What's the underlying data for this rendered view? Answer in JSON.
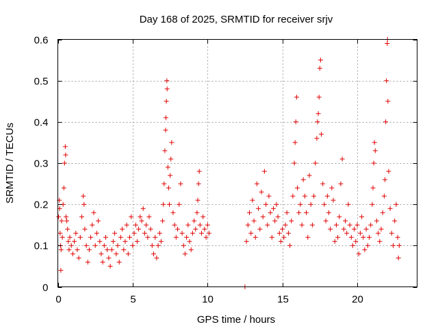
{
  "chart_data": {
    "type": "scatter",
    "title": "Day 168 of 2025, SRMTID for receiver srjv",
    "xlabel": "GPS time / hours",
    "ylabel": "SRMTID / TECUs",
    "xlim": [
      0,
      24
    ],
    "ylim": [
      0,
      0.6
    ],
    "xticks": [
      0,
      5,
      10,
      15,
      20
    ],
    "xtick_labels": [
      "0",
      "5",
      "10",
      "15",
      "20"
    ],
    "yticks": [
      0,
      0.1,
      0.2,
      0.3,
      0.4,
      0.5,
      0.6
    ],
    "ytick_labels": [
      "0",
      "0.1",
      "0.2",
      "0.3",
      "0.4",
      "0.5",
      "0.6"
    ],
    "grid": true,
    "marker": "plus",
    "color": "#e00000",
    "series": [
      {
        "name": "srjv",
        "points": [
          [
            0.05,
            0.17
          ],
          [
            0.1,
            0.21
          ],
          [
            0.12,
            0.19
          ],
          [
            0.15,
            0.13
          ],
          [
            0.18,
            0.1
          ],
          [
            0.2,
            0.04
          ],
          [
            0.22,
            0.09
          ],
          [
            0.25,
            0.16
          ],
          [
            0.3,
            0.12
          ],
          [
            0.35,
            0.2
          ],
          [
            0.4,
            0.24
          ],
          [
            0.45,
            0.3
          ],
          [
            0.5,
            0.34
          ],
          [
            0.52,
            0.32
          ],
          [
            0.55,
            0.17
          ],
          [
            0.6,
            0.16
          ],
          [
            0.65,
            0.14
          ],
          [
            0.7,
            0.11
          ],
          [
            0.75,
            0.09
          ],
          [
            0.8,
            0.12
          ],
          [
            0.9,
            0.1
          ],
          [
            1.0,
            0.08
          ],
          [
            1.1,
            0.11
          ],
          [
            1.2,
            0.13
          ],
          [
            1.3,
            0.09
          ],
          [
            1.4,
            0.07
          ],
          [
            1.5,
            0.12
          ],
          [
            1.6,
            0.17
          ],
          [
            1.7,
            0.22
          ],
          [
            1.75,
            0.2
          ],
          [
            1.8,
            0.14
          ],
          [
            1.9,
            0.1
          ],
          [
            2.0,
            0.06
          ],
          [
            2.1,
            0.09
          ],
          [
            2.2,
            0.12
          ],
          [
            2.3,
            0.15
          ],
          [
            2.4,
            0.18
          ],
          [
            2.5,
            0.1
          ],
          [
            2.6,
            0.13
          ],
          [
            2.7,
            0.16
          ],
          [
            2.8,
            0.11
          ],
          [
            2.9,
            0.08
          ],
          [
            3.0,
            0.06
          ],
          [
            3.1,
            0.1
          ],
          [
            3.2,
            0.12
          ],
          [
            3.3,
            0.09
          ],
          [
            3.4,
            0.07
          ],
          [
            3.5,
            0.05
          ],
          [
            3.6,
            0.09
          ],
          [
            3.7,
            0.11
          ],
          [
            3.8,
            0.13
          ],
          [
            3.9,
            0.08
          ],
          [
            4.0,
            0.1
          ],
          [
            4.1,
            0.06
          ],
          [
            4.2,
            0.12
          ],
          [
            4.3,
            0.14
          ],
          [
            4.4,
            0.09
          ],
          [
            4.5,
            0.11
          ],
          [
            4.6,
            0.15
          ],
          [
            4.7,
            0.08
          ],
          [
            4.8,
            0.12
          ],
          [
            4.9,
            0.17
          ],
          [
            5.0,
            0.1
          ],
          [
            5.1,
            0.13
          ],
          [
            5.2,
            0.15
          ],
          [
            5.3,
            0.11
          ],
          [
            5.4,
            0.14
          ],
          [
            5.5,
            0.17
          ],
          [
            5.6,
            0.16
          ],
          [
            5.7,
            0.19
          ],
          [
            5.8,
            0.13
          ],
          [
            5.9,
            0.15
          ],
          [
            6.0,
            0.12
          ],
          [
            6.1,
            0.17
          ],
          [
            6.2,
            0.14
          ],
          [
            6.3,
            0.1
          ],
          [
            6.4,
            0.08
          ],
          [
            6.5,
            0.12
          ],
          [
            6.6,
            0.07
          ],
          [
            6.7,
            0.1
          ],
          [
            6.8,
            0.13
          ],
          [
            6.9,
            0.11
          ],
          [
            7.0,
            0.16
          ],
          [
            7.05,
            0.2
          ],
          [
            7.1,
            0.25
          ],
          [
            7.15,
            0.33
          ],
          [
            7.2,
            0.38
          ],
          [
            7.22,
            0.41
          ],
          [
            7.25,
            0.45
          ],
          [
            7.28,
            0.5
          ],
          [
            7.3,
            0.48
          ],
          [
            7.35,
            0.29
          ],
          [
            7.4,
            0.24
          ],
          [
            7.45,
            0.2
          ],
          [
            7.5,
            0.27
          ],
          [
            7.55,
            0.31
          ],
          [
            7.6,
            0.35
          ],
          [
            7.7,
            0.18
          ],
          [
            7.8,
            0.15
          ],
          [
            7.9,
            0.12
          ],
          [
            8.0,
            0.14
          ],
          [
            8.1,
            0.2
          ],
          [
            8.2,
            0.25
          ],
          [
            8.3,
            0.13
          ],
          [
            8.4,
            0.1
          ],
          [
            8.5,
            0.08
          ],
          [
            8.6,
            0.12
          ],
          [
            8.7,
            0.15
          ],
          [
            8.8,
            0.11
          ],
          [
            8.9,
            0.09
          ],
          [
            9.0,
            0.13
          ],
          [
            9.1,
            0.16
          ],
          [
            9.2,
            0.14
          ],
          [
            9.3,
            0.18
          ],
          [
            9.35,
            0.21
          ],
          [
            9.4,
            0.25
          ],
          [
            9.45,
            0.28
          ],
          [
            9.5,
            0.15
          ],
          [
            9.6,
            0.13
          ],
          [
            9.7,
            0.17
          ],
          [
            9.8,
            0.14
          ],
          [
            9.9,
            0.12
          ],
          [
            10.0,
            0.15
          ],
          [
            10.1,
            0.13
          ],
          [
            12.5,
            0.0
          ],
          [
            12.6,
            0.11
          ],
          [
            12.7,
            0.15
          ],
          [
            12.8,
            0.18
          ],
          [
            12.9,
            0.13
          ],
          [
            13.0,
            0.21
          ],
          [
            13.1,
            0.16
          ],
          [
            13.2,
            0.12
          ],
          [
            13.3,
            0.25
          ],
          [
            13.4,
            0.19
          ],
          [
            13.5,
            0.14
          ],
          [
            13.6,
            0.23
          ],
          [
            13.7,
            0.17
          ],
          [
            13.8,
            0.28
          ],
          [
            13.9,
            0.2
          ],
          [
            14.0,
            0.15
          ],
          [
            14.1,
            0.22
          ],
          [
            14.2,
            0.18
          ],
          [
            14.3,
            0.12
          ],
          [
            14.4,
            0.19
          ],
          [
            14.5,
            0.16
          ],
          [
            14.6,
            0.2
          ],
          [
            14.7,
            0.17
          ],
          [
            14.8,
            0.13
          ],
          [
            14.9,
            0.11
          ],
          [
            15.0,
            0.14
          ],
          [
            15.1,
            0.12
          ],
          [
            15.2,
            0.15
          ],
          [
            15.3,
            0.18
          ],
          [
            15.4,
            0.13
          ],
          [
            15.5,
            0.1
          ],
          [
            15.6,
            0.16
          ],
          [
            15.7,
            0.22
          ],
          [
            15.8,
            0.3
          ],
          [
            15.85,
            0.35
          ],
          [
            15.9,
            0.4
          ],
          [
            15.95,
            0.46
          ],
          [
            16.0,
            0.24
          ],
          [
            16.1,
            0.18
          ],
          [
            16.2,
            0.2
          ],
          [
            16.3,
            0.15
          ],
          [
            16.4,
            0.26
          ],
          [
            16.5,
            0.22
          ],
          [
            16.6,
            0.18
          ],
          [
            16.7,
            0.12
          ],
          [
            16.8,
            0.27
          ],
          [
            16.9,
            0.2
          ],
          [
            17.0,
            0.15
          ],
          [
            17.1,
            0.22
          ],
          [
            17.2,
            0.3
          ],
          [
            17.3,
            0.36
          ],
          [
            17.35,
            0.4
          ],
          [
            17.4,
            0.42
          ],
          [
            17.45,
            0.46
          ],
          [
            17.5,
            0.53
          ],
          [
            17.55,
            0.55
          ],
          [
            17.6,
            0.37
          ],
          [
            17.7,
            0.25
          ],
          [
            17.8,
            0.2
          ],
          [
            17.9,
            0.16
          ],
          [
            18.0,
            0.22
          ],
          [
            18.1,
            0.18
          ],
          [
            18.2,
            0.14
          ],
          [
            18.3,
            0.24
          ],
          [
            18.4,
            0.21
          ],
          [
            18.5,
            0.11
          ],
          [
            18.6,
            0.15
          ],
          [
            18.7,
            0.12
          ],
          [
            18.8,
            0.17
          ],
          [
            18.9,
            0.25
          ],
          [
            19.0,
            0.31
          ],
          [
            19.1,
            0.14
          ],
          [
            19.2,
            0.16
          ],
          [
            19.3,
            0.13
          ],
          [
            19.4,
            0.2
          ],
          [
            19.5,
            0.15
          ],
          [
            19.6,
            0.12
          ],
          [
            19.7,
            0.1
          ],
          [
            19.8,
            0.14
          ],
          [
            19.9,
            0.11
          ],
          [
            20.0,
            0.15
          ],
          [
            20.1,
            0.08
          ],
          [
            20.2,
            0.13
          ],
          [
            20.3,
            0.17
          ],
          [
            20.4,
            0.12
          ],
          [
            20.5,
            0.09
          ],
          [
            20.6,
            0.14
          ],
          [
            20.7,
            0.1
          ],
          [
            20.8,
            0.12
          ],
          [
            20.9,
            0.15
          ],
          [
            21.0,
            0.2
          ],
          [
            21.05,
            0.24
          ],
          [
            21.1,
            0.3
          ],
          [
            21.15,
            0.35
          ],
          [
            21.2,
            0.33
          ],
          [
            21.3,
            0.16
          ],
          [
            21.4,
            0.13
          ],
          [
            21.5,
            0.11
          ],
          [
            21.6,
            0.14
          ],
          [
            21.7,
            0.18
          ],
          [
            21.8,
            0.22
          ],
          [
            21.85,
            0.26
          ],
          [
            21.9,
            0.4
          ],
          [
            21.95,
            0.5
          ],
          [
            22.0,
            0.59
          ],
          [
            22.02,
            0.6
          ],
          [
            22.05,
            0.45
          ],
          [
            22.1,
            0.28
          ],
          [
            22.2,
            0.19
          ],
          [
            22.3,
            0.13
          ],
          [
            22.4,
            0.1
          ],
          [
            22.5,
            0.16
          ],
          [
            22.6,
            0.2
          ],
          [
            22.7,
            0.12
          ],
          [
            22.75,
            0.07
          ],
          [
            22.8,
            0.1
          ]
        ]
      }
    ]
  }
}
